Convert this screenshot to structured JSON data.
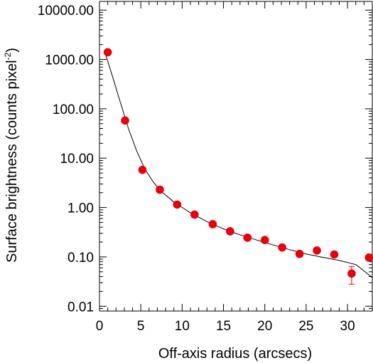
{
  "chart_data": {
    "type": "scatter",
    "xlabel": "Off-axis radius (arcsecs)",
    "ylabel_main": "Surface brightness (counts pixel",
    "ylabel_sup": "-2",
    "ylabel_close": ")",
    "xlim": [
      0,
      33
    ],
    "ylim": [
      0.008,
      15000
    ],
    "yscale": "log",
    "grid": false,
    "x_ticks": [
      0,
      5,
      10,
      15,
      20,
      25,
      30
    ],
    "x_tick_labels": [
      "0",
      "5",
      "10",
      "15",
      "20",
      "25",
      "30"
    ],
    "y_ticks": [
      0.01,
      0.1,
      1,
      10,
      100,
      1000,
      10000
    ],
    "y_tick_labels": [
      "0.01",
      "0.10",
      "1.00",
      "10.00",
      "100.00",
      "1000.00",
      "10000.00"
    ],
    "series": [
      {
        "kind": "points",
        "color": "#e8000a",
        "points": [
          {
            "x": 1.0,
            "y": 1400,
            "err": [
              1300,
              1500
            ]
          },
          {
            "x": 3.1,
            "y": 58,
            "err": [
              55,
              61
            ]
          },
          {
            "x": 5.2,
            "y": 5.8,
            "err": [
              5.6,
              6.0
            ]
          },
          {
            "x": 7.3,
            "y": 2.3,
            "err": [
              2.2,
              2.4
            ]
          },
          {
            "x": 9.4,
            "y": 1.15,
            "err": [
              1.1,
              1.2
            ]
          },
          {
            "x": 11.5,
            "y": 0.72,
            "err": [
              0.69,
              0.75
            ]
          },
          {
            "x": 13.7,
            "y": 0.46,
            "err": [
              0.44,
              0.48
            ]
          },
          {
            "x": 15.8,
            "y": 0.33,
            "err": [
              0.31,
              0.35
            ]
          },
          {
            "x": 17.9,
            "y": 0.245,
            "err": [
              0.23,
              0.26
            ]
          },
          {
            "x": 20.0,
            "y": 0.22,
            "err": [
              0.205,
              0.235
            ]
          },
          {
            "x": 22.1,
            "y": 0.155,
            "err": [
              0.14,
              0.17
            ]
          },
          {
            "x": 24.2,
            "y": 0.115,
            "err": [
              0.1,
              0.13
            ]
          },
          {
            "x": 26.3,
            "y": 0.135,
            "err": [
              0.12,
              0.15
            ]
          },
          {
            "x": 28.4,
            "y": 0.112,
            "err": [
              0.1,
              0.125
            ]
          },
          {
            "x": 30.5,
            "y": 0.046,
            "err": [
              0.028,
              0.064
            ]
          },
          {
            "x": 32.6,
            "y": 0.097,
            "err": [
              0.085,
              0.11
            ]
          }
        ]
      },
      {
        "kind": "line",
        "color": "#000000",
        "points": [
          {
            "x": 0.6,
            "y": 1500
          },
          {
            "x": 1.5,
            "y": 500
          },
          {
            "x": 2.5,
            "y": 140
          },
          {
            "x": 3.5,
            "y": 40
          },
          {
            "x": 4.5,
            "y": 14
          },
          {
            "x": 5.5,
            "y": 6
          },
          {
            "x": 6.5,
            "y": 3.3
          },
          {
            "x": 7.5,
            "y": 2.1
          },
          {
            "x": 9.0,
            "y": 1.3
          },
          {
            "x": 11.0,
            "y": 0.78
          },
          {
            "x": 13.0,
            "y": 0.52
          },
          {
            "x": 15.0,
            "y": 0.37
          },
          {
            "x": 17.0,
            "y": 0.28
          },
          {
            "x": 19.0,
            "y": 0.22
          },
          {
            "x": 21.0,
            "y": 0.175
          },
          {
            "x": 23.0,
            "y": 0.14
          },
          {
            "x": 25.0,
            "y": 0.115
          },
          {
            "x": 27.0,
            "y": 0.098
          },
          {
            "x": 29.0,
            "y": 0.085
          },
          {
            "x": 31.0,
            "y": 0.07
          },
          {
            "x": 32.0,
            "y": 0.052
          },
          {
            "x": 33.0,
            "y": 0.038
          }
        ]
      }
    ]
  }
}
